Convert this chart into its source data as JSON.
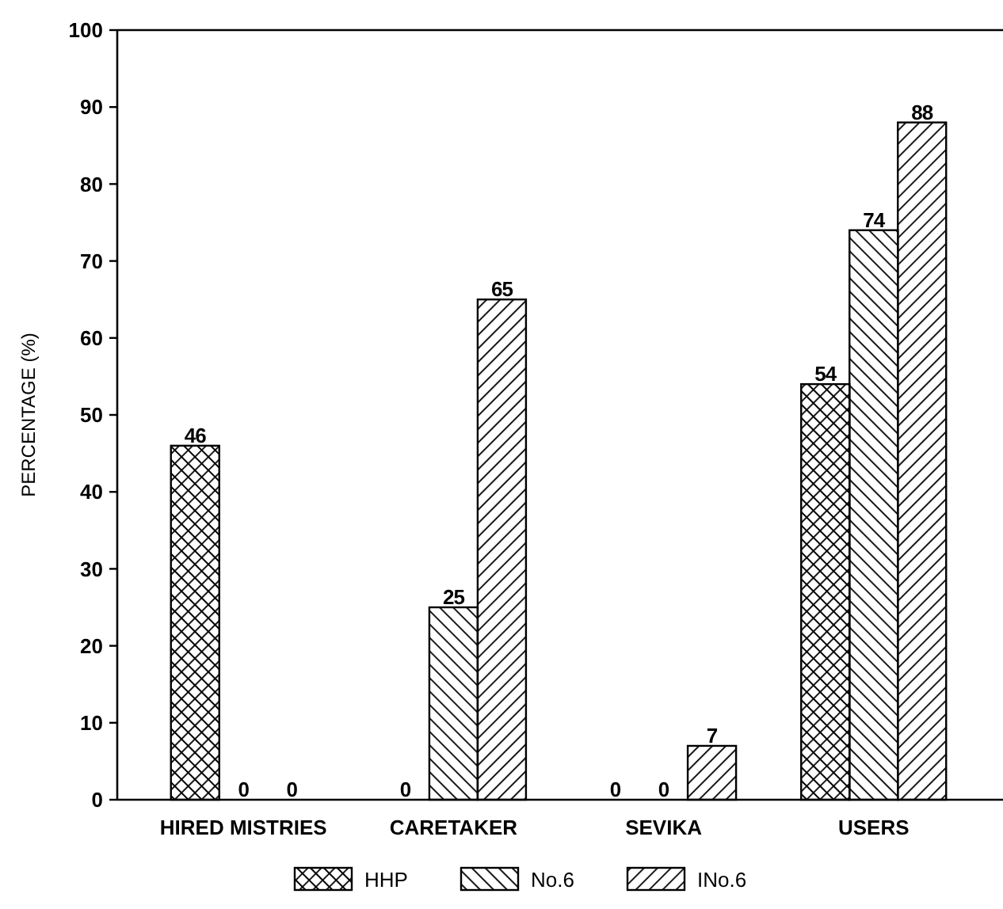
{
  "chart_data": {
    "type": "bar",
    "ylabel": "PERCENTAGE (%)",
    "categories": [
      "HIRED MISTRIES",
      "CARETAKER",
      "SEVIKA",
      "USERS"
    ],
    "series": [
      {
        "name": "HHP",
        "color": "#000000",
        "values": [
          46,
          0,
          0,
          54
        ]
      },
      {
        "name": "No.6",
        "color": "#000000",
        "values": [
          0,
          25,
          0,
          74
        ]
      },
      {
        "name": "INo.6",
        "color": "#000000",
        "values": [
          0,
          65,
          7,
          88
        ]
      }
    ],
    "ylim": [
      0,
      100
    ],
    "yticks": [
      0,
      10,
      20,
      30,
      40,
      50,
      60,
      70,
      80,
      90,
      100
    ],
    "data_labels": true,
    "legend": "bottom",
    "grid": false
  }
}
